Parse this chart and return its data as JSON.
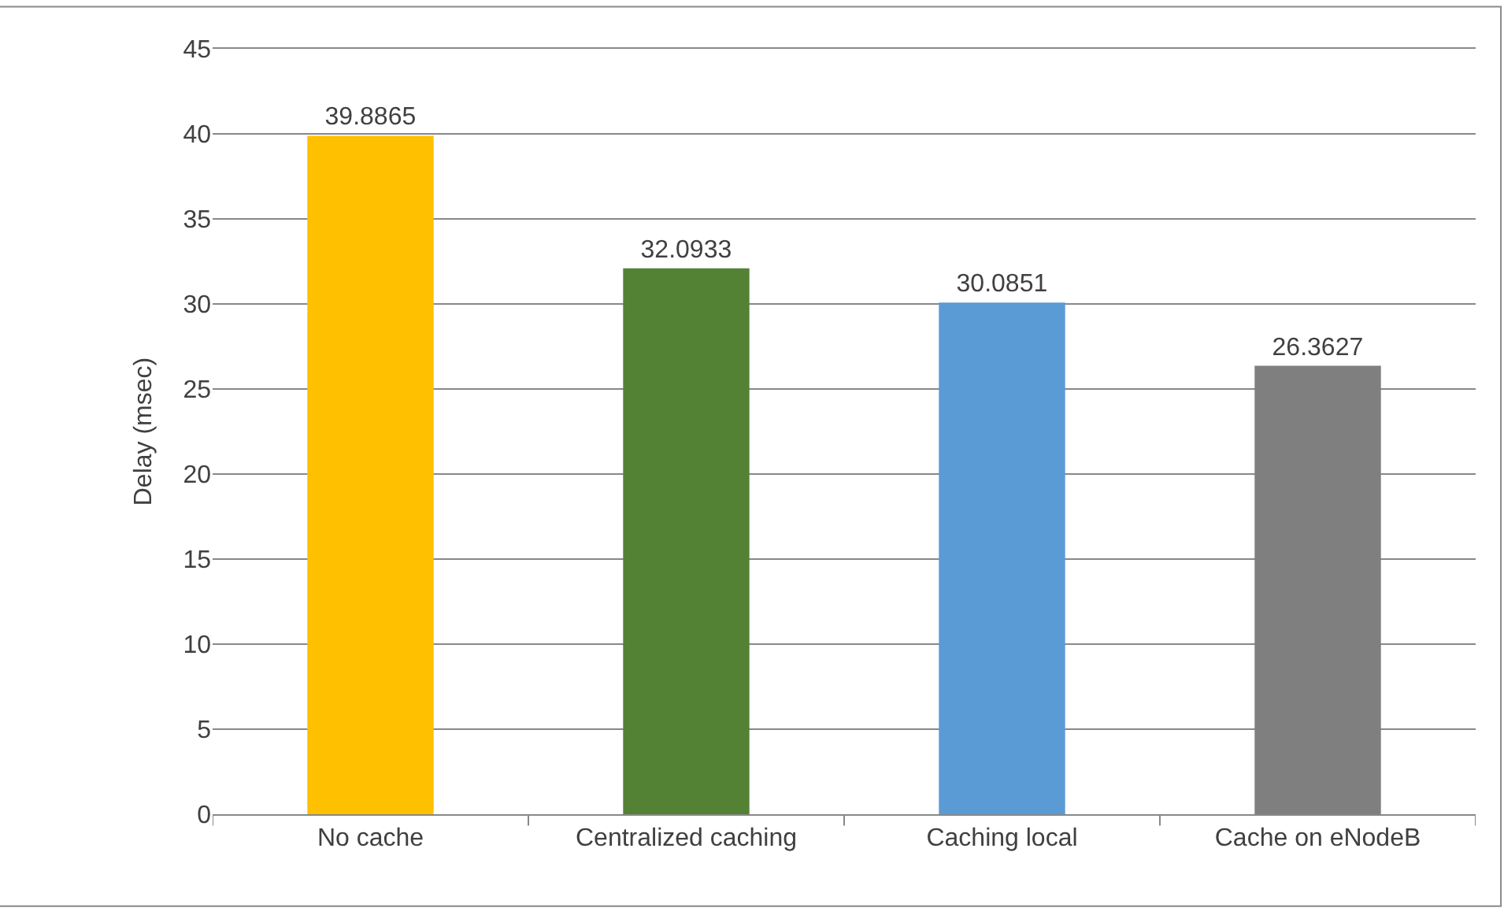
{
  "chart_data": {
    "type": "bar",
    "ylabel": "Delay (msec)",
    "categories": [
      "No cache",
      "Centralized caching",
      "Caching local",
      "Cache on eNodeB"
    ],
    "values": [
      39.8865,
      32.0933,
      30.0851,
      26.3627
    ],
    "colors": [
      "#ffc000",
      "#548235",
      "#5b9bd5",
      "#7f7f7f"
    ],
    "value_labels": [
      "39.8865",
      "32.0933",
      "30.0851",
      "26.3627"
    ],
    "ylim": [
      0,
      45
    ],
    "yticks": [
      0,
      5,
      10,
      15,
      20,
      25,
      30,
      35,
      40,
      45
    ],
    "grid": "y"
  }
}
